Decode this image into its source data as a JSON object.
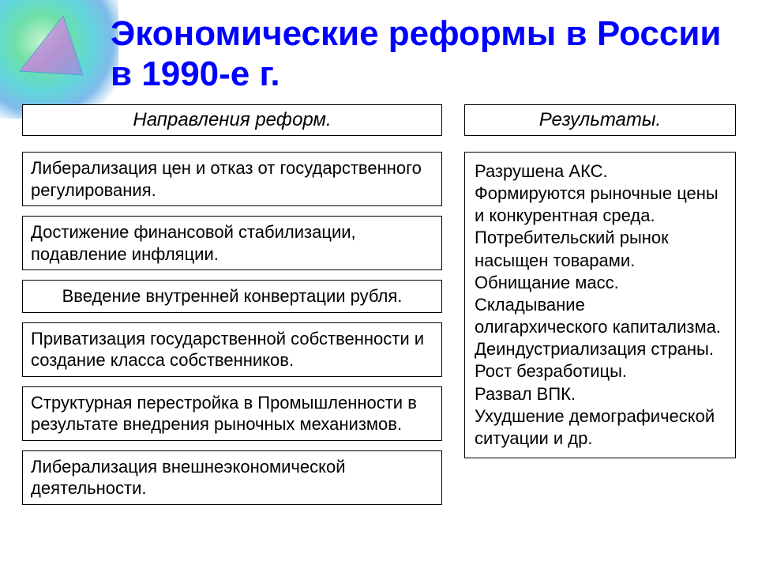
{
  "title": "Экономические реформы в России в 1990-е г.",
  "left": {
    "header": "Направления реформ.",
    "items": [
      {
        "text": "Либерализация цен и отказ от государственного регулирования.",
        "centered": false
      },
      {
        "text": "Достижение финансовой стабилизации, подавление инфляции.",
        "centered": false
      },
      {
        "text": "Введение внутренней конвертации рубля.",
        "centered": true
      },
      {
        "text": "Приватизация государственной собственности и создание класса собственников.",
        "centered": false
      },
      {
        "text": "Структурная перестройка в Промышленности в результате  внедрения рыночных механизмов.",
        "centered": false
      },
      {
        "text": "Либерализация внешнеэкономической деятельности.",
        "centered": false
      }
    ]
  },
  "right": {
    "header": "Результаты.",
    "body": "Разрушена АКС.\nФормируются рыночные цены и конкурентная среда.\nПотребительский рынок насыщен товарами.\nОбнищание масс.\nСкладывание\n олигархического капитализма.\nДеиндустриализация страны.\nРост безработицы.\nРазвал ВПК.\nУхудшение демографической ситуации и др."
  },
  "decoration": {
    "gradient_colors": [
      "#5edc9e",
      "#4fd3d6",
      "#6fb3e8",
      "#a0e890"
    ],
    "triangle_color": "#b88cd4",
    "triangle_edge": "#4a9fd8"
  }
}
